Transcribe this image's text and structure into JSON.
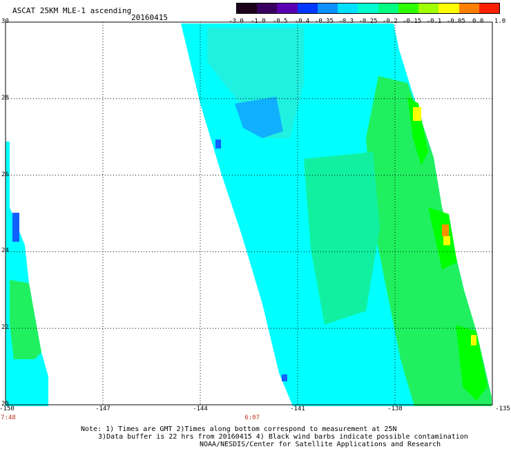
{
  "header": {
    "title": "ASCAT 25KM MLE-1 ascending",
    "date": "20160415"
  },
  "colorbar": {
    "labels": [
      "-3.0",
      "-1.0",
      "-0.5",
      "-0.4",
      "-0.35",
      "-0.3",
      "-0.25",
      "-0.2",
      "-0.15",
      "-0.1",
      "-0.05",
      "0.0",
      "1.0"
    ],
    "colors": [
      "#1a001a",
      "#3a0060",
      "#5a00b0",
      "#0038ff",
      "#0a90ff",
      "#00e0ff",
      "#00ffd0",
      "#00ff80",
      "#30ff00",
      "#a0ff00",
      "#ffff00",
      "#ff8000",
      "#ff2000"
    ]
  },
  "axes": {
    "lon_labels": [
      "-150",
      "-147",
      "-144",
      "-141",
      "-138",
      "-135"
    ],
    "lat_labels": [
      "30",
      "28",
      "26",
      "24",
      "22",
      "20"
    ],
    "lon_range": [
      -150,
      -135
    ],
    "lat_range": [
      20,
      30
    ]
  },
  "times": [
    {
      "label": "7:48",
      "lon": -150
    },
    {
      "label": "6:07",
      "lon": -142.4
    }
  ],
  "notes": {
    "line1": "Note: 1) Times are GMT 2)Times along bottom correspond to measurement at 25N",
    "line2": "3)Data buffer is 22 hrs from 20160415 4) Black wind barbs indicate possible contamination",
    "line3": "NOAA/NESDIS/Center for Satellite Applications and Research"
  },
  "colors": {
    "cyan": "#00ffff",
    "aqua": "#20f0e0",
    "green": "#20f060",
    "bright_green": "#00ff00",
    "blue": "#10b0ff",
    "deep_blue": "#1060ff",
    "yellow": "#ffff00",
    "orange": "#ff9000"
  }
}
